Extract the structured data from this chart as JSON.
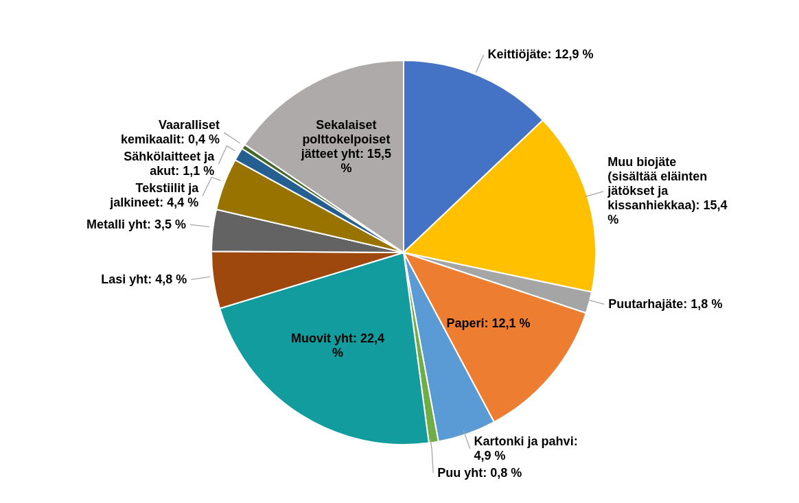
{
  "chart_data": {
    "type": "pie",
    "categories": [
      "Keittiöjäte: 12,9 %",
      "Muu biojäte (sisältää eläinten jätökset ja kissanhiekkaa): 15,4 %",
      "Puutarhajäte: 1,8 %",
      "Paperi: 12,1 %",
      "Kartonki ja pahvi: 4,9 %",
      "Puu yht: 0,8 %",
      "Muovit yht: 22,4 %",
      "Lasi yht: 4,8 %",
      "Metalli yht: 3,5 %",
      "Tekstiilit ja jalkineet: 4,4 %",
      "Sähkölaitteet ja akut: 1,1 %",
      "Vaaralliset kemikaalit: 0,4 %",
      "Sekalaiset polttokelpoiset jätteet yht: 15,5 %"
    ],
    "values": [
      12.9,
      15.4,
      1.8,
      12.1,
      4.9,
      0.8,
      22.4,
      4.8,
      3.5,
      4.4,
      1.1,
      0.4,
      15.5
    ],
    "colors": [
      "#4472c4",
      "#ffc000",
      "#a5a5a5",
      "#ed7d31",
      "#5b9bd5",
      "#70ad47",
      "#139c9e",
      "#9e480e",
      "#636363",
      "#997300",
      "#255e91",
      "#43682b",
      "#aeaaaa"
    ]
  }
}
